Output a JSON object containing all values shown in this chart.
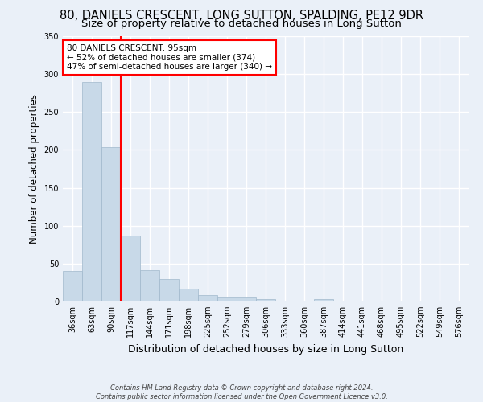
{
  "title1": "80, DANIELS CRESCENT, LONG SUTTON, SPALDING, PE12 9DR",
  "title2": "Size of property relative to detached houses in Long Sutton",
  "xlabel": "Distribution of detached houses by size in Long Sutton",
  "ylabel": "Number of detached properties",
  "footer1": "Contains HM Land Registry data © Crown copyright and database right 2024.",
  "footer2": "Contains public sector information licensed under the Open Government Licence v3.0.",
  "categories": [
    "36sqm",
    "63sqm",
    "90sqm",
    "117sqm",
    "144sqm",
    "171sqm",
    "198sqm",
    "225sqm",
    "252sqm",
    "279sqm",
    "306sqm",
    "333sqm",
    "360sqm",
    "387sqm",
    "414sqm",
    "441sqm",
    "468sqm",
    "495sqm",
    "522sqm",
    "549sqm",
    "576sqm"
  ],
  "values": [
    40,
    290,
    204,
    87,
    41,
    30,
    17,
    9,
    5,
    5,
    3,
    0,
    0,
    3,
    0,
    0,
    0,
    0,
    0,
    0,
    0
  ],
  "bar_color": "#c8d9e8",
  "bar_edge_color": "#a0b8cc",
  "property_label": "80 DANIELS CRESCENT: 95sqm",
  "line_label_smaller": "← 52% of detached houses are smaller (374)",
  "line_label_larger": "47% of semi-detached houses are larger (340) →",
  "vline_color": "red",
  "background_color": "#eaf0f8",
  "grid_color": "#ffffff",
  "ylim": [
    0,
    350
  ],
  "title1_fontsize": 10.5,
  "title2_fontsize": 9.5,
  "ylabel_fontsize": 8.5,
  "xlabel_fontsize": 9,
  "tick_fontsize": 7,
  "annot_fontsize": 7.5,
  "footer_fontsize": 6
}
